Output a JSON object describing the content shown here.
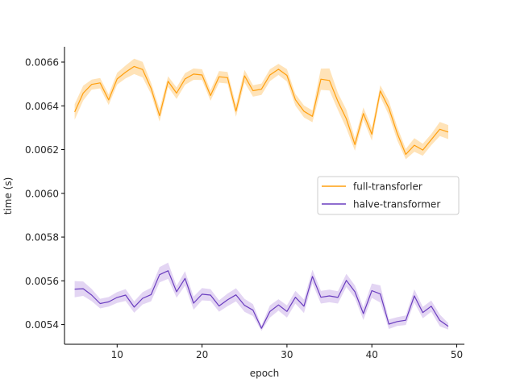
{
  "chart_data": {
    "type": "line",
    "title": "",
    "xlabel": "epoch",
    "ylabel": "time (s)",
    "xlim": [
      3.8,
      50.9
    ],
    "ylim": [
      0.00531,
      0.00667
    ],
    "xticks": [
      10,
      20,
      30,
      40,
      50
    ],
    "xtick_labels": [
      "10",
      "20",
      "30",
      "40",
      "50"
    ],
    "yticks": [
      0.0054,
      0.0056,
      0.0058,
      0.006,
      0.0062,
      0.0064,
      0.0066
    ],
    "ytick_labels": [
      "0.0054",
      "0.0056",
      "0.0058",
      "0.0060",
      "0.0062",
      "0.0064",
      "0.0066"
    ],
    "grid": false,
    "legend_position": "center-right",
    "x": [
      5,
      6,
      7,
      8,
      9,
      10,
      11,
      12,
      13,
      14,
      15,
      16,
      17,
      18,
      19,
      20,
      21,
      22,
      23,
      24,
      25,
      26,
      27,
      28,
      29,
      30,
      31,
      32,
      33,
      34,
      35,
      36,
      37,
      38,
      39,
      40,
      41,
      42,
      43,
      44,
      45,
      46,
      47,
      48,
      49
    ],
    "series": [
      {
        "name": "full-transforler",
        "color": "#ff9f0e",
        "band_color": "#ffd9a0",
        "values": [
          0.006372,
          0.006458,
          0.006498,
          0.006505,
          0.006427,
          0.006523,
          0.006554,
          0.00658,
          0.006566,
          0.00648,
          0.006355,
          0.006512,
          0.006458,
          0.006523,
          0.006545,
          0.006541,
          0.006447,
          0.006533,
          0.006529,
          0.006376,
          0.006537,
          0.006469,
          0.006476,
          0.006541,
          0.006567,
          0.006539,
          0.006428,
          0.006375,
          0.006352,
          0.006522,
          0.006516,
          0.00642,
          0.00634,
          0.006223,
          0.006365,
          0.00627,
          0.006468,
          0.00639,
          0.006273,
          0.006178,
          0.00622,
          0.006198,
          0.006245,
          0.006293,
          0.00628
        ],
        "lower": [
          0.006336,
          0.006424,
          0.006474,
          0.00648,
          0.006404,
          0.006497,
          0.006525,
          0.006545,
          0.00653,
          0.006454,
          0.006328,
          0.006487,
          0.006431,
          0.006496,
          0.006519,
          0.006518,
          0.006423,
          0.006506,
          0.006502,
          0.00635,
          0.006507,
          0.006442,
          0.00645,
          0.006513,
          0.006541,
          0.006511,
          0.006401,
          0.006347,
          0.006325,
          0.006473,
          0.00647,
          0.006381,
          0.006297,
          0.006195,
          0.006337,
          0.006241,
          0.006441,
          0.006357,
          0.006241,
          0.006156,
          0.00619,
          0.006172,
          0.00622,
          0.006262,
          0.006248
        ],
        "upper": [
          0.006408,
          0.006492,
          0.00652,
          0.006527,
          0.006452,
          0.006551,
          0.006584,
          0.006616,
          0.006601,
          0.006505,
          0.006386,
          0.006535,
          0.006484,
          0.006549,
          0.006571,
          0.006567,
          0.006471,
          0.006559,
          0.006555,
          0.006405,
          0.006564,
          0.006494,
          0.006502,
          0.006567,
          0.006592,
          0.006568,
          0.006454,
          0.006402,
          0.006379,
          0.00657,
          0.006571,
          0.006459,
          0.006382,
          0.006252,
          0.006393,
          0.006299,
          0.006494,
          0.006422,
          0.006302,
          0.006203,
          0.006252,
          0.006227,
          0.006271,
          0.006326,
          0.006312
        ]
      },
      {
        "name": "halve-transformer",
        "color": "#6a3dbf",
        "band_color": "#d9c7ef",
        "values": [
          0.005562,
          0.005564,
          0.005535,
          0.005496,
          0.005504,
          0.005524,
          0.005535,
          0.00548,
          0.00552,
          0.005537,
          0.005628,
          0.005646,
          0.00555,
          0.005611,
          0.005498,
          0.005539,
          0.005535,
          0.005485,
          0.005513,
          0.005536,
          0.005488,
          0.005466,
          0.005383,
          0.00546,
          0.00549,
          0.00546,
          0.005525,
          0.005484,
          0.00562,
          0.005525,
          0.005531,
          0.005524,
          0.005602,
          0.00555,
          0.00545,
          0.005555,
          0.00554,
          0.005402,
          0.005414,
          0.00542,
          0.005531,
          0.005455,
          0.005484,
          0.005419,
          0.005392
        ],
        "lower": [
          0.005525,
          0.005531,
          0.005507,
          0.005474,
          0.005482,
          0.005499,
          0.005508,
          0.005454,
          0.005492,
          0.005506,
          0.005593,
          0.005609,
          0.005523,
          0.005578,
          0.005468,
          0.005511,
          0.005508,
          0.005459,
          0.005484,
          0.005506,
          0.005458,
          0.005439,
          0.005371,
          0.005432,
          0.005464,
          0.005432,
          0.005496,
          0.005453,
          0.005589,
          0.005496,
          0.005502,
          0.005496,
          0.005572,
          0.005521,
          0.005421,
          0.005522,
          0.005501,
          0.00538,
          0.005394,
          0.005398,
          0.005501,
          0.005429,
          0.005458,
          0.005392,
          0.005377
        ],
        "upper": [
          0.005599,
          0.005597,
          0.005563,
          0.005518,
          0.005526,
          0.005549,
          0.005562,
          0.005506,
          0.005548,
          0.005568,
          0.005663,
          0.005683,
          0.005577,
          0.005644,
          0.005528,
          0.005567,
          0.005562,
          0.005511,
          0.005542,
          0.005566,
          0.005518,
          0.005493,
          0.005395,
          0.005488,
          0.005516,
          0.005488,
          0.005554,
          0.005515,
          0.005651,
          0.005554,
          0.00556,
          0.005552,
          0.005632,
          0.005579,
          0.005479,
          0.005588,
          0.005579,
          0.005424,
          0.005434,
          0.005442,
          0.005561,
          0.005481,
          0.00551,
          0.005446,
          0.005407
        ]
      }
    ]
  }
}
